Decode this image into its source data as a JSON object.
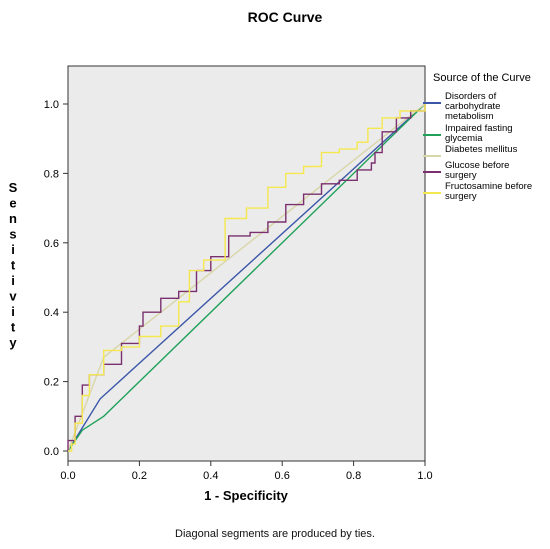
{
  "chart_data": {
    "type": "line",
    "title": "ROC Curve",
    "xlabel": "1 - Specificity",
    "ylabel": "Sensitivity",
    "xlim": [
      0,
      1
    ],
    "ylim": [
      0,
      1
    ],
    "x_ticks": [
      "0.0",
      "0.2",
      "0.4",
      "0.6",
      "0.8",
      "1.0"
    ],
    "y_ticks": [
      "0.0",
      "0.2",
      "0.4",
      "0.6",
      "0.8",
      "1.0"
    ],
    "grid": false,
    "legend_title": "Source of the Curve",
    "legend_placement": "right",
    "footnote": "Diagonal segments are produced by ties.",
    "series": [
      {
        "name": "Disorders of carbohydrate metabolism",
        "color": "#3a56a8",
        "step": false,
        "points": [
          [
            0,
            0
          ],
          [
            0.09,
            0.15
          ],
          [
            1,
            1
          ]
        ]
      },
      {
        "name": "Impaired fasting glycemia",
        "color": "#1fa15a",
        "step": false,
        "points": [
          [
            0,
            0
          ],
          [
            0.04,
            0.06
          ],
          [
            0.1,
            0.1
          ],
          [
            1,
            1
          ]
        ]
      },
      {
        "name": "Diabetes mellitus",
        "color": "#d9d6a8",
        "step": false,
        "points": [
          [
            0,
            0
          ],
          [
            0.1,
            0.27
          ],
          [
            1,
            1
          ]
        ]
      },
      {
        "name": "Glucose before surgery",
        "color": "#7a2f6e",
        "step": true,
        "points": [
          [
            0,
            0
          ],
          [
            0,
            0.03
          ],
          [
            0.02,
            0.03
          ],
          [
            0.02,
            0.1
          ],
          [
            0.04,
            0.1
          ],
          [
            0.04,
            0.19
          ],
          [
            0.06,
            0.19
          ],
          [
            0.06,
            0.22
          ],
          [
            0.1,
            0.25
          ],
          [
            0.15,
            0.31
          ],
          [
            0.2,
            0.36
          ],
          [
            0.21,
            0.4
          ],
          [
            0.26,
            0.44
          ],
          [
            0.31,
            0.46
          ],
          [
            0.36,
            0.52
          ],
          [
            0.4,
            0.56
          ],
          [
            0.45,
            0.62
          ],
          [
            0.51,
            0.63
          ],
          [
            0.56,
            0.66
          ],
          [
            0.61,
            0.71
          ],
          [
            0.66,
            0.74
          ],
          [
            0.71,
            0.77
          ],
          [
            0.76,
            0.78
          ],
          [
            0.81,
            0.81
          ],
          [
            0.85,
            0.83
          ],
          [
            0.86,
            0.86
          ],
          [
            0.88,
            0.92
          ],
          [
            0.92,
            0.96
          ],
          [
            0.96,
            0.98
          ],
          [
            1,
            1
          ]
        ]
      },
      {
        "name": "Fructosamine before surgery",
        "color": "#f5e84e",
        "step": true,
        "points": [
          [
            0,
            0
          ],
          [
            0.01,
            0.02
          ],
          [
            0.02,
            0.08
          ],
          [
            0.04,
            0.16
          ],
          [
            0.06,
            0.22
          ],
          [
            0.1,
            0.29
          ],
          [
            0.15,
            0.3
          ],
          [
            0.2,
            0.33
          ],
          [
            0.26,
            0.36
          ],
          [
            0.31,
            0.43
          ],
          [
            0.34,
            0.52
          ],
          [
            0.38,
            0.55
          ],
          [
            0.44,
            0.67
          ],
          [
            0.5,
            0.7
          ],
          [
            0.56,
            0.76
          ],
          [
            0.61,
            0.8
          ],
          [
            0.66,
            0.82
          ],
          [
            0.71,
            0.86
          ],
          [
            0.76,
            0.87
          ],
          [
            0.81,
            0.89
          ],
          [
            0.84,
            0.93
          ],
          [
            0.88,
            0.96
          ],
          [
            0.93,
            0.98
          ],
          [
            1,
            1
          ]
        ]
      }
    ]
  }
}
